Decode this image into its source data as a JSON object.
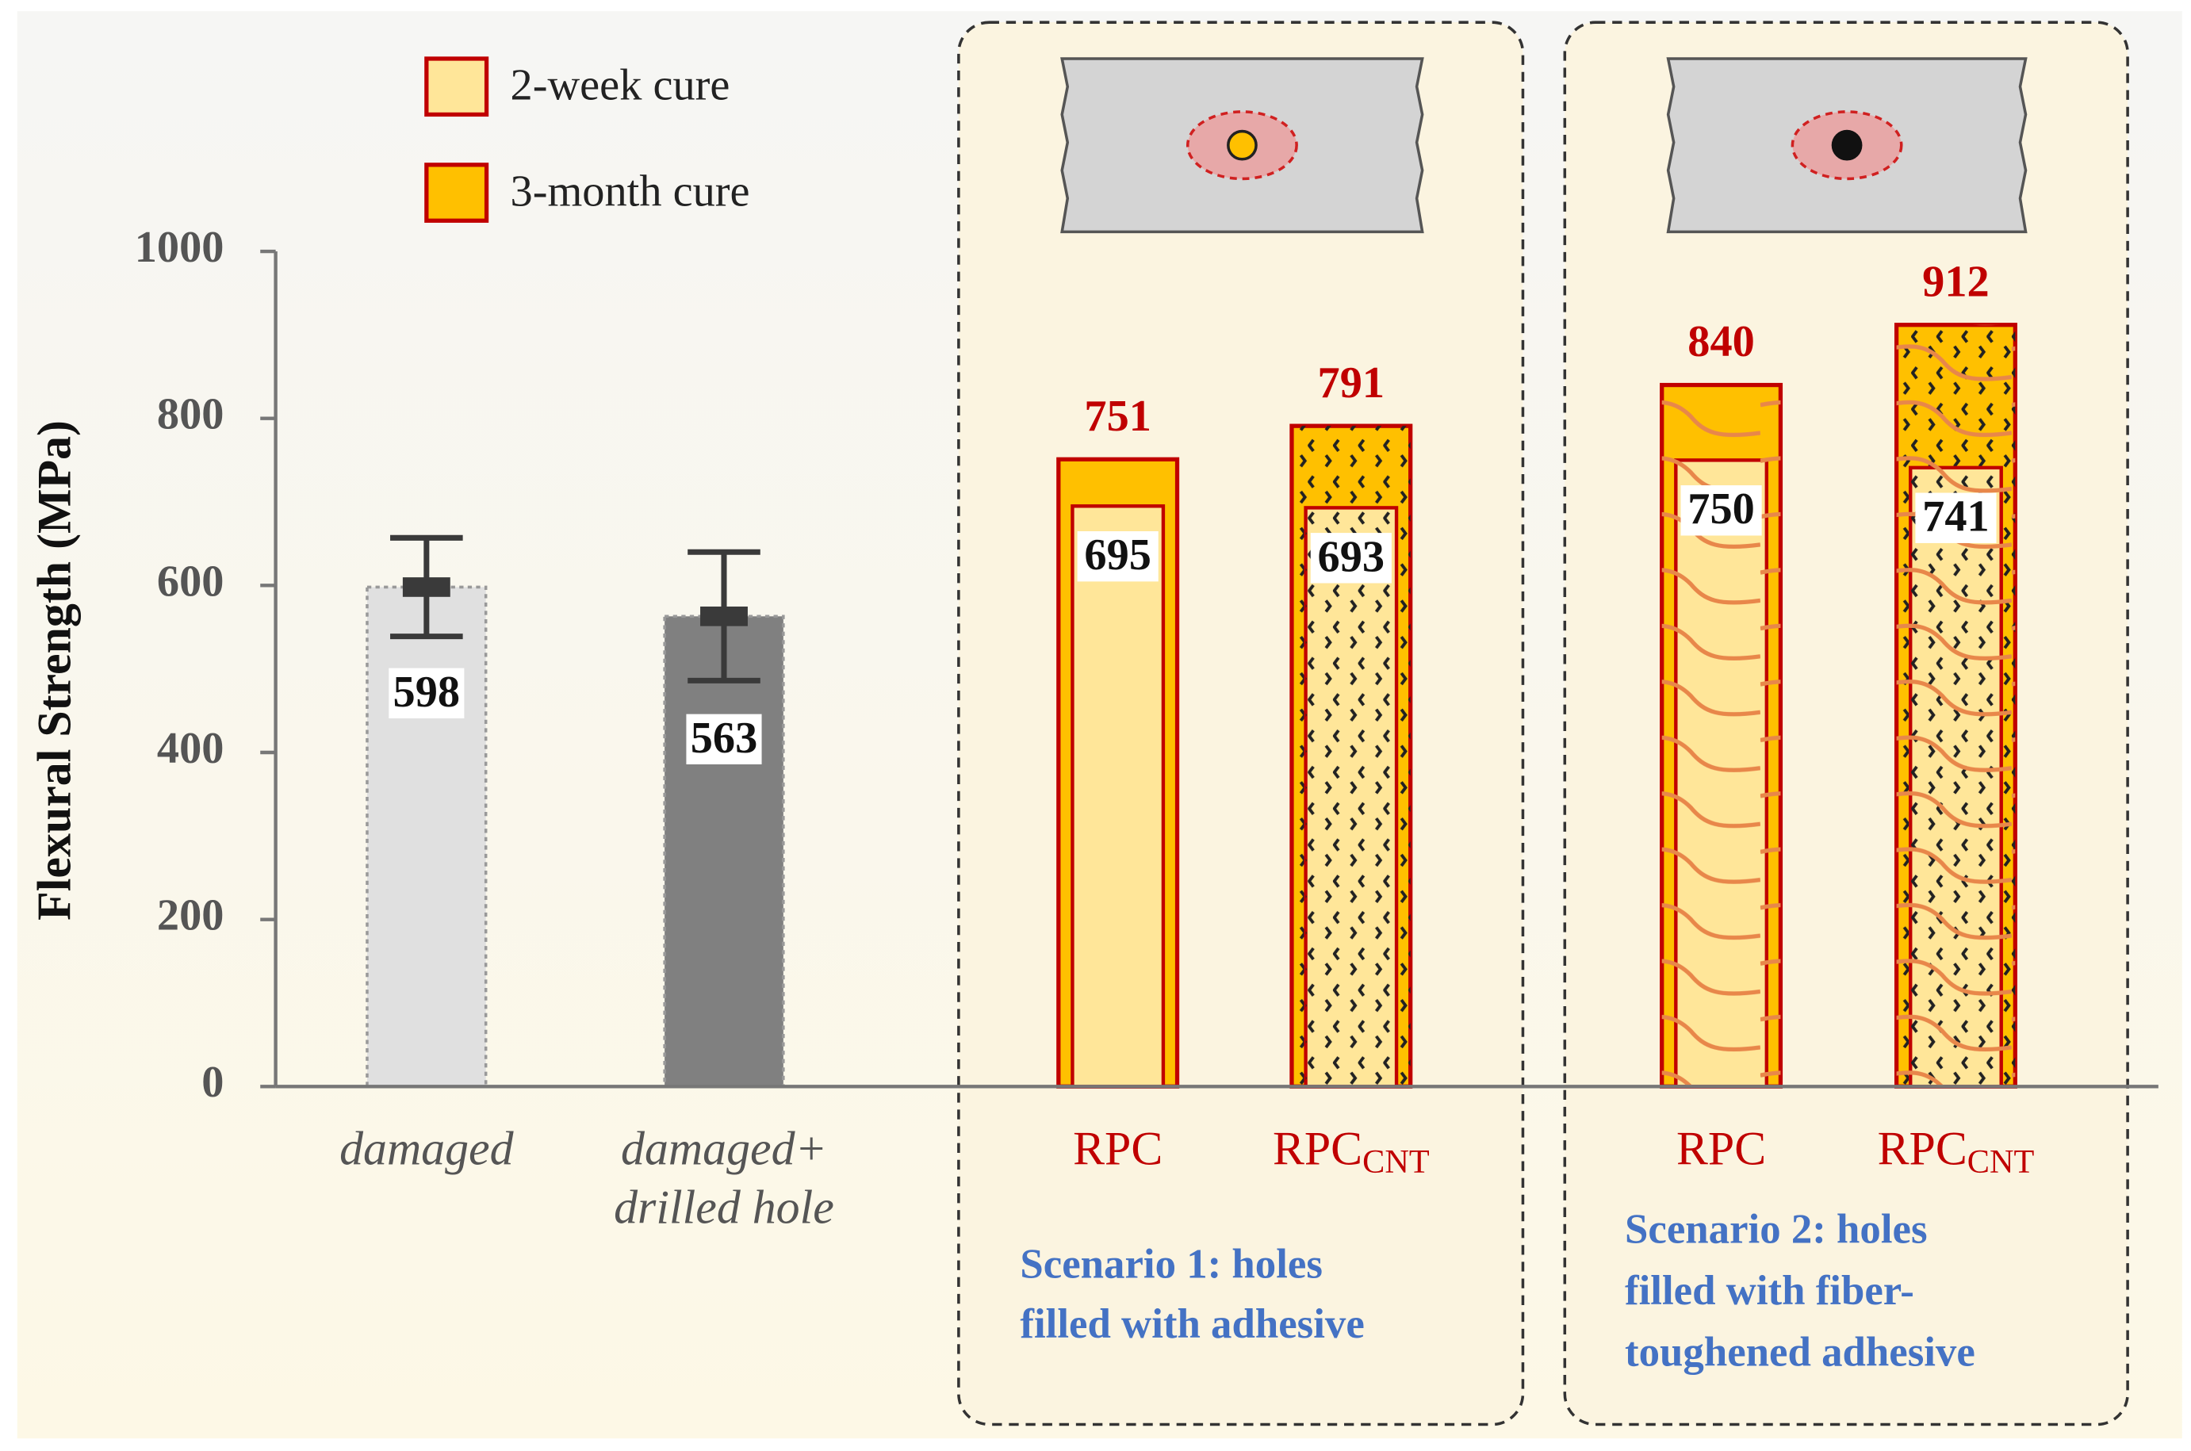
{
  "chart_data": {
    "type": "bar",
    "ylabel": "Flexural Strength (MPa)",
    "ylim": [
      0,
      1000
    ],
    "yticks": [
      0,
      200,
      400,
      600,
      800,
      1000
    ],
    "categories": [
      {
        "lines": [
          "damaged"
        ]
      },
      {
        "lines": [
          "damaged+",
          "drilled hole"
        ]
      },
      {
        "lines": [
          "RPC"
        ]
      },
      {
        "lines": [
          "RPC"
        ],
        "subscript": "CNT"
      },
      {
        "lines": [
          "RPC"
        ]
      },
      {
        "lines": [
          "RPC"
        ],
        "subscript": "CNT"
      }
    ],
    "reference": {
      "values": [
        598,
        563,
        null,
        null,
        null,
        null
      ],
      "errors": [
        59,
        77,
        null,
        null,
        null,
        null
      ],
      "colors": [
        "#e0e0e0",
        "#808080",
        null,
        null,
        null,
        null
      ]
    },
    "series": [
      {
        "name": "2-week cure",
        "color": "#ffe699",
        "values": [
          null,
          null,
          695,
          693,
          750,
          741
        ]
      },
      {
        "name": "3-month cure",
        "color": "#ffc000",
        "values": [
          null,
          null,
          751,
          791,
          840,
          912
        ]
      }
    ],
    "edge_color": "#c00000",
    "panels": [
      {
        "title": [
          "Scenario 1: holes",
          "filled with adhesive"
        ]
      },
      {
        "title": [
          "Scenario 2: holes",
          "filled with fiber-",
          "toughened adhesive"
        ]
      }
    ]
  }
}
